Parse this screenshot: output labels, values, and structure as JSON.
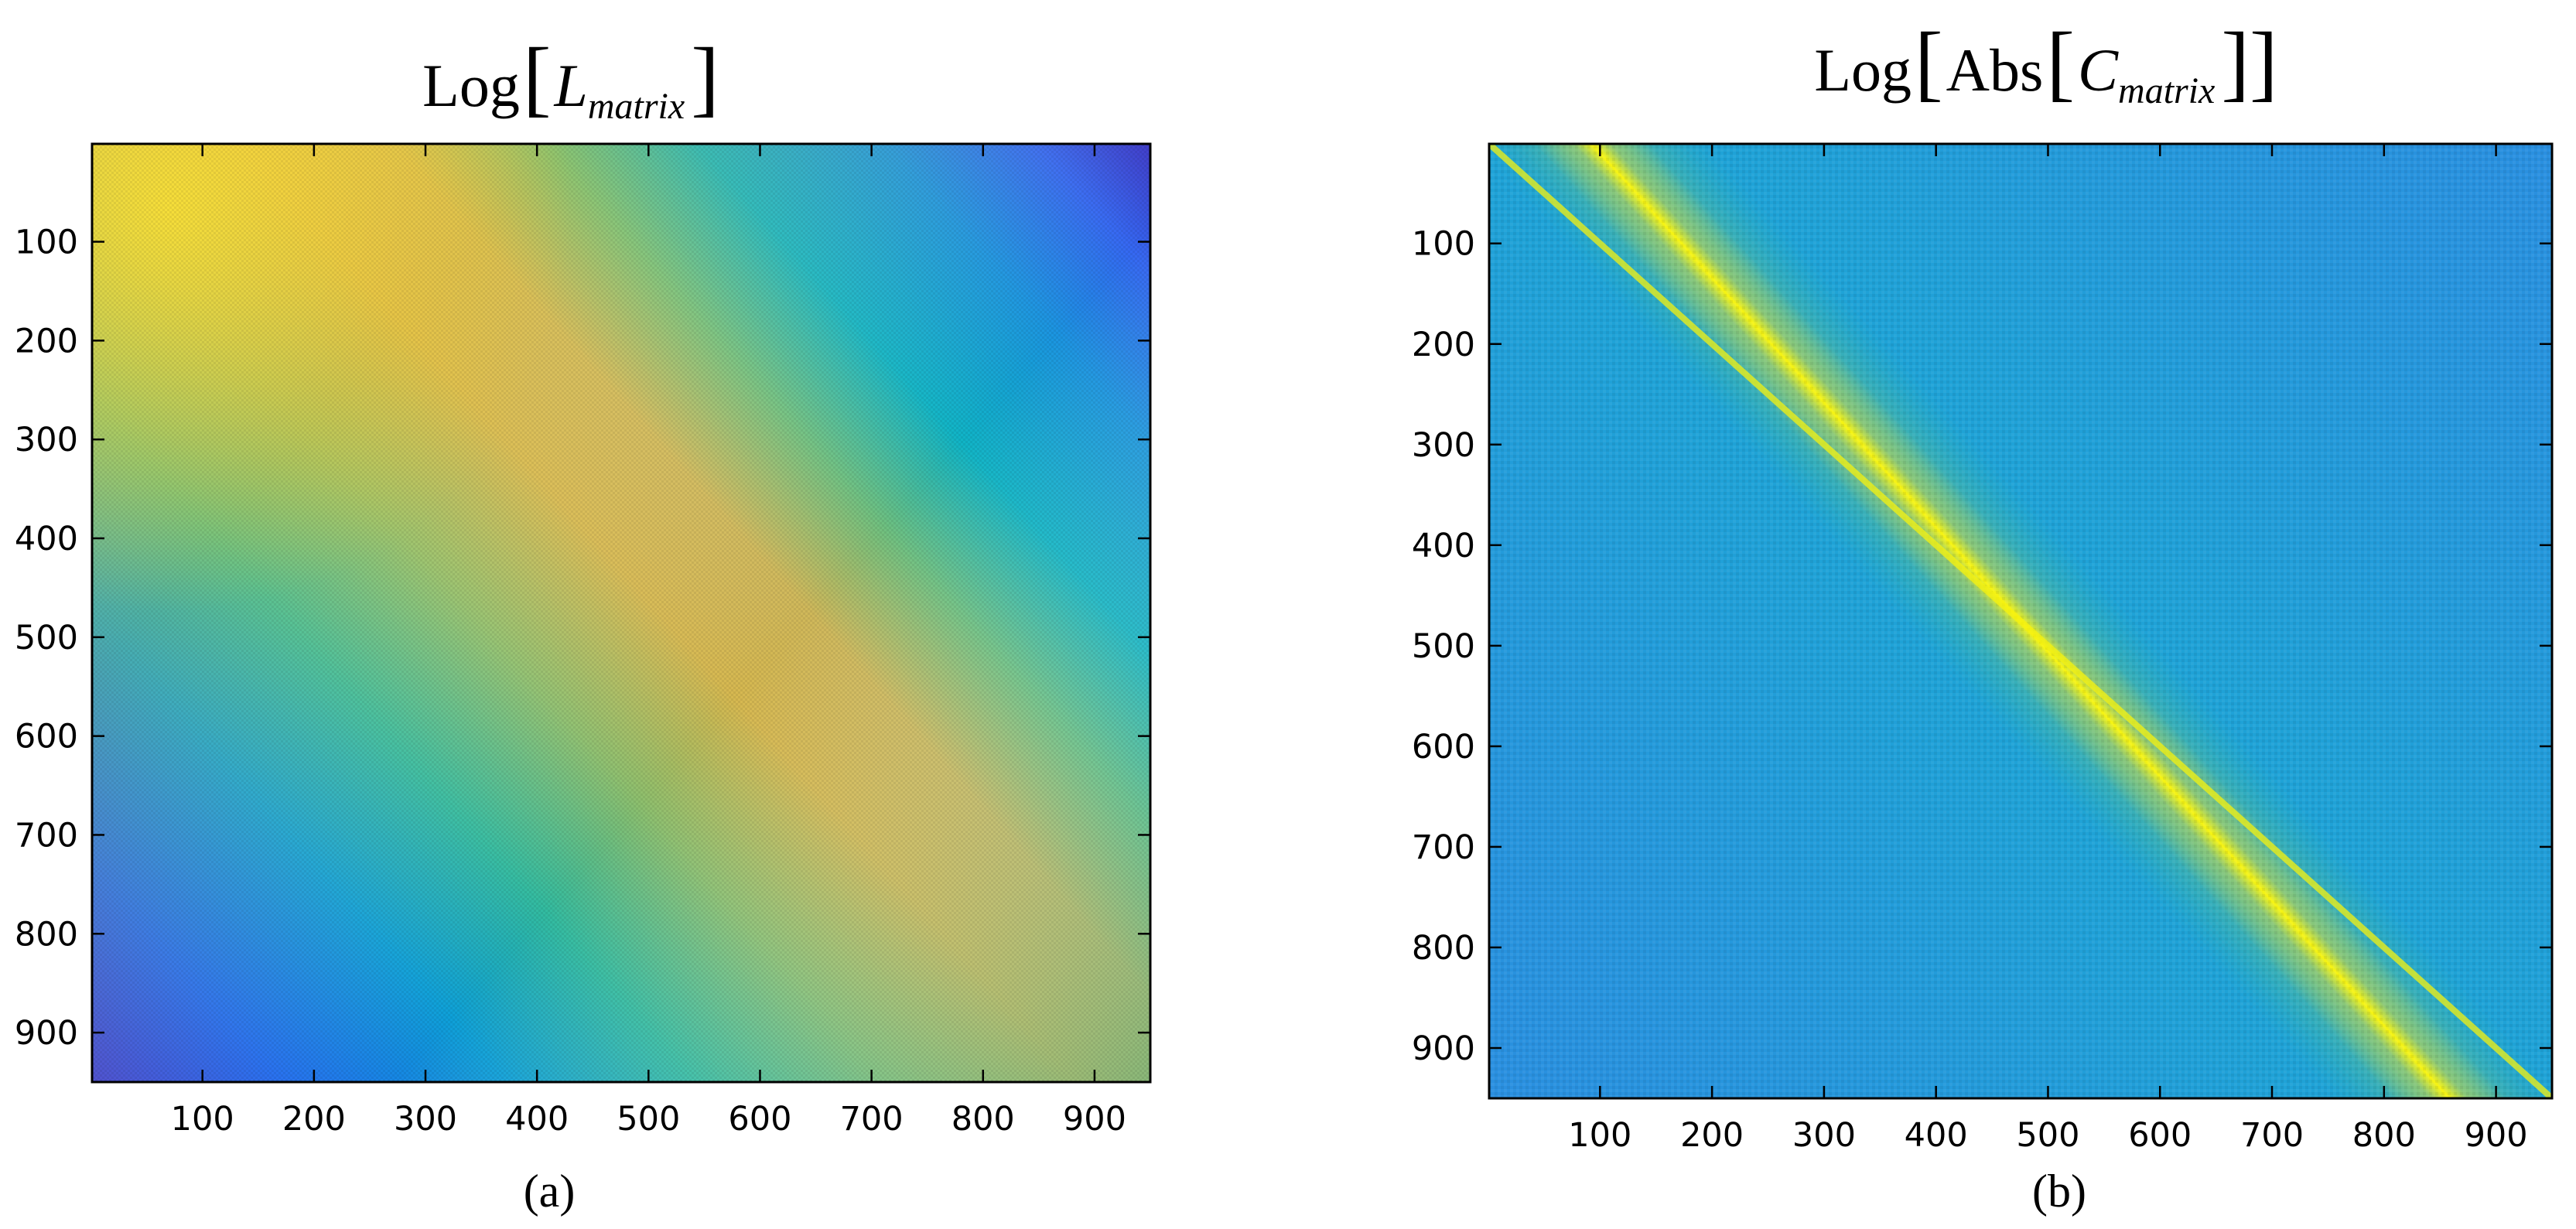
{
  "figure": {
    "caption_a": "(a)",
    "caption_b": "(b)"
  },
  "chart_data": [
    {
      "type": "heatmap",
      "title": "Log[L_matrix]",
      "title_parts": {
        "func": "Log",
        "open": "[",
        "symbol": "L",
        "subscript": "matrix",
        "close": "]"
      },
      "xlabel": "",
      "ylabel": "",
      "xlim": [
        1,
        950
      ],
      "ylim": [
        1,
        950
      ],
      "y_reversed": true,
      "xticks": [
        100,
        200,
        300,
        400,
        500,
        600,
        700,
        800,
        900
      ],
      "yticks": [
        100,
        200,
        300,
        400,
        500,
        600,
        700,
        800,
        900
      ],
      "colormap": "parula",
      "colormap_colors": [
        "#352a87",
        "#0f5cdd",
        "#1481d6",
        "#06a4ca",
        "#2eb7a4",
        "#87bf77",
        "#d1bb59",
        "#fec832",
        "#f9fb0e"
      ],
      "pattern": "high values along a band from top-left toward bottom-right, decreasing toward the top-right and bottom-left corners",
      "grid": false
    },
    {
      "type": "heatmap",
      "title": "Log[Abs[C_matrix]]",
      "title_parts": {
        "func": "Log",
        "open1": "[",
        "abs": "Abs",
        "open2": "[",
        "symbol": "C",
        "subscript": "matrix",
        "close": "]]"
      },
      "xlabel": "",
      "ylabel": "",
      "xlim": [
        1,
        950
      ],
      "ylim": [
        1,
        950
      ],
      "y_reversed": true,
      "xticks": [
        100,
        200,
        300,
        400,
        500,
        600,
        700,
        800,
        900
      ],
      "yticks": [
        100,
        200,
        300,
        400,
        500,
        600,
        700,
        800,
        900
      ],
      "colormap": "parula",
      "colormap_colors": [
        "#352a87",
        "#0f5cdd",
        "#1481d6",
        "#06a4ca",
        "#2eb7a4",
        "#87bf77",
        "#d1bb59",
        "#fec832",
        "#f9fb0e"
      ],
      "pattern": "nearly uniform background with a bright narrow diagonal band along the main diagonal",
      "grid": false
    }
  ]
}
